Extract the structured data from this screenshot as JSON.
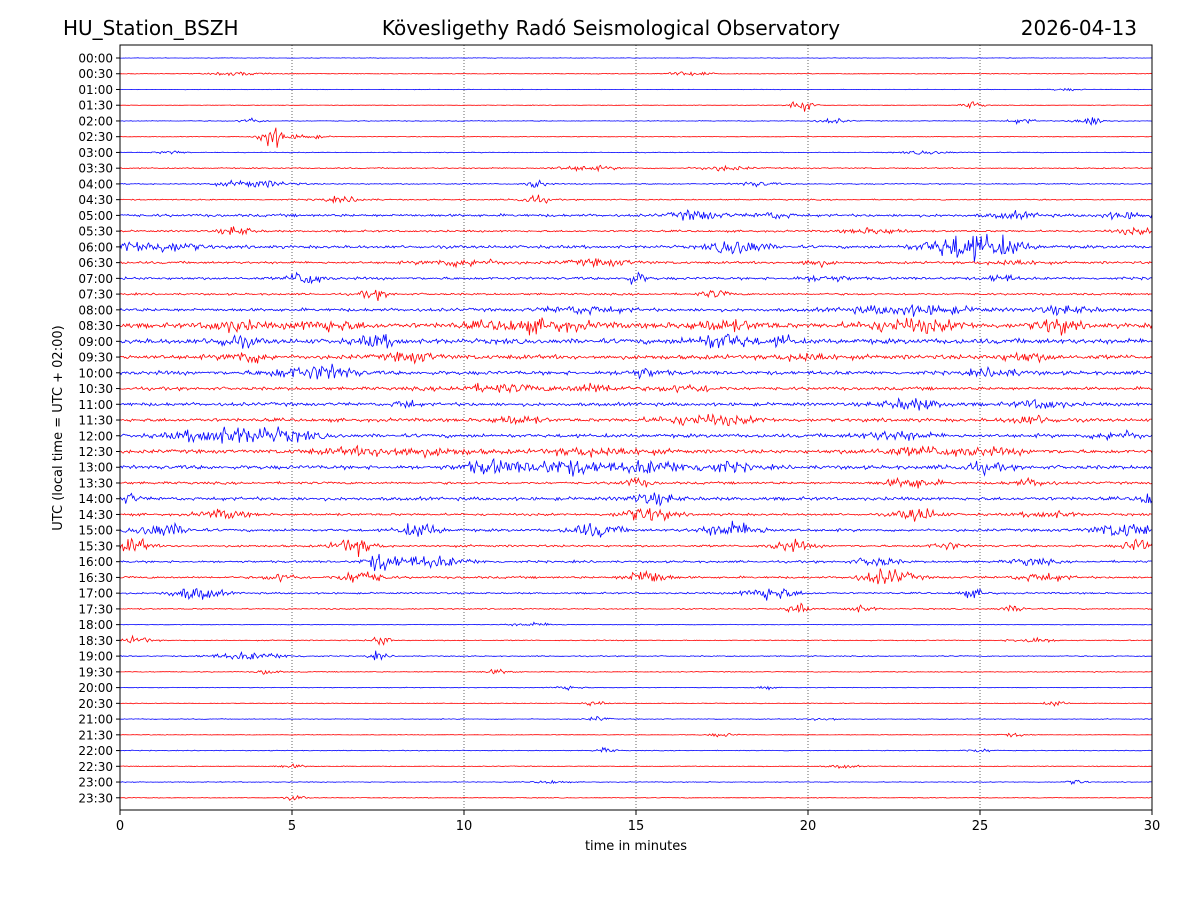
{
  "header": {
    "station": "HU_Station_BSZH",
    "observatory": "Kövesligethy Radó Seismological Observatory",
    "date": "2026-04-13"
  },
  "chart_data": {
    "type": "helicorder",
    "xlabel": "time in minutes",
    "ylabel": "UTC (local time = UTC + 02:00)",
    "xlim": [
      0,
      30
    ],
    "xticks": [
      0,
      5,
      10,
      15,
      20,
      25,
      30
    ],
    "grid": "vertical dotted at every 5 min",
    "colors": [
      "#0000ff",
      "#ff0000"
    ],
    "rows": [
      {
        "time": "00:00",
        "level": 0.4,
        "bursts": []
      },
      {
        "time": "00:30",
        "level": 0.6,
        "bursts": [
          [
            3.5,
            0.5,
            3
          ],
          [
            16.5,
            0.5,
            3
          ]
        ]
      },
      {
        "time": "01:00",
        "level": 0.4,
        "bursts": [
          [
            27.5,
            0.3,
            2
          ]
        ]
      },
      {
        "time": "01:30",
        "level": 0.45,
        "bursts": [
          [
            19.8,
            0.2,
            16
          ],
          [
            24.8,
            0.2,
            6
          ]
        ]
      },
      {
        "time": "02:00",
        "level": 0.6,
        "bursts": [
          [
            3.8,
            0.2,
            6
          ],
          [
            20.7,
            0.3,
            4
          ],
          [
            26.2,
            0.3,
            4
          ],
          [
            28.2,
            0.3,
            8
          ]
        ]
      },
      {
        "time": "02:30",
        "level": 0.5,
        "bursts": [
          [
            4.4,
            0.25,
            20
          ],
          [
            5.4,
            0.4,
            4
          ]
        ]
      },
      {
        "time": "03:00",
        "level": 0.6,
        "bursts": [
          [
            1.5,
            0.3,
            3
          ],
          [
            23.5,
            0.5,
            3
          ]
        ]
      },
      {
        "time": "03:30",
        "level": 1.0,
        "bursts": [
          [
            13.5,
            0.6,
            4
          ],
          [
            17.5,
            0.5,
            4
          ]
        ]
      },
      {
        "time": "04:00",
        "level": 0.9,
        "bursts": [
          [
            3.9,
            0.7,
            6
          ],
          [
            12.1,
            0.2,
            8
          ],
          [
            18.5,
            0.4,
            4
          ]
        ]
      },
      {
        "time": "04:30",
        "level": 1.0,
        "bursts": [
          [
            12.0,
            0.3,
            8
          ],
          [
            6.5,
            0.5,
            4
          ]
        ]
      },
      {
        "time": "05:00",
        "level": 2.2,
        "bursts": [
          [
            16.8,
            0.5,
            8
          ],
          [
            19.0,
            0.4,
            5
          ],
          [
            26.0,
            0.5,
            5
          ],
          [
            29.2,
            0.5,
            5
          ]
        ]
      },
      {
        "time": "05:30",
        "level": 1.6,
        "bursts": [
          [
            3.4,
            0.3,
            8
          ],
          [
            22.0,
            0.6,
            5
          ],
          [
            29.5,
            0.4,
            5
          ]
        ]
      },
      {
        "time": "06:00",
        "level": 2.5,
        "bursts": [
          [
            0.3,
            0.5,
            8
          ],
          [
            1.5,
            0.6,
            7
          ],
          [
            18.0,
            0.5,
            14
          ],
          [
            24.6,
            0.8,
            22
          ],
          [
            25.8,
            0.4,
            8
          ]
        ]
      },
      {
        "time": "06:30",
        "level": 2.0,
        "bursts": [
          [
            10.0,
            0.8,
            6
          ],
          [
            14.0,
            0.7,
            5
          ],
          [
            20.2,
            0.3,
            6
          ],
          [
            26.0,
            0.5,
            5
          ]
        ]
      },
      {
        "time": "07:00",
        "level": 2.2,
        "bursts": [
          [
            5.4,
            0.3,
            14
          ],
          [
            15.0,
            0.2,
            10
          ],
          [
            20.5,
            0.5,
            5
          ],
          [
            25.6,
            0.3,
            6
          ]
        ]
      },
      {
        "time": "07:30",
        "level": 1.6,
        "bursts": [
          [
            7.4,
            0.3,
            7
          ],
          [
            17.3,
            0.3,
            6
          ]
        ]
      },
      {
        "time": "08:00",
        "level": 2.6,
        "bursts": [
          [
            13.5,
            0.8,
            6
          ],
          [
            23.0,
            1.2,
            8
          ],
          [
            27.5,
            0.6,
            6
          ]
        ]
      },
      {
        "time": "08:30",
        "level": 4.0,
        "bursts": [
          [
            3.3,
            0.5,
            9
          ],
          [
            6.0,
            0.7,
            8
          ],
          [
            12.0,
            1.2,
            9
          ],
          [
            17.5,
            0.8,
            8
          ],
          [
            23.0,
            1.0,
            10
          ],
          [
            27.2,
            0.4,
            12
          ]
        ]
      },
      {
        "time": "09:00",
        "level": 4.2,
        "bursts": [
          [
            3.3,
            0.4,
            9
          ],
          [
            7.5,
            0.4,
            9
          ],
          [
            17.5,
            0.6,
            12
          ],
          [
            19.3,
            0.2,
            9
          ]
        ]
      },
      {
        "time": "09:30",
        "level": 3.6,
        "bursts": [
          [
            3.7,
            0.4,
            10
          ],
          [
            8.5,
            0.5,
            7
          ],
          [
            20.0,
            0.5,
            7
          ],
          [
            26.3,
            0.5,
            7
          ]
        ]
      },
      {
        "time": "10:00",
        "level": 3.2,
        "bursts": [
          [
            5.3,
            0.7,
            9
          ],
          [
            6.3,
            0.4,
            8
          ],
          [
            15.2,
            0.4,
            7
          ],
          [
            25.5,
            0.5,
            6
          ]
        ]
      },
      {
        "time": "10:30",
        "level": 2.6,
        "bursts": [
          [
            11.0,
            1.0,
            6
          ],
          [
            13.8,
            0.5,
            8
          ],
          [
            16.5,
            0.6,
            6
          ]
        ]
      },
      {
        "time": "11:00",
        "level": 2.8,
        "bursts": [
          [
            8.3,
            0.2,
            9
          ],
          [
            23.0,
            0.6,
            9
          ],
          [
            26.8,
            0.5,
            7
          ]
        ]
      },
      {
        "time": "11:30",
        "level": 2.8,
        "bursts": [
          [
            11.5,
            0.5,
            7
          ],
          [
            17.0,
            1.0,
            8
          ],
          [
            26.5,
            0.5,
            7
          ]
        ]
      },
      {
        "time": "12:00",
        "level": 3.0,
        "bursts": [
          [
            2.8,
            0.8,
            12
          ],
          [
            4.5,
            0.8,
            10
          ],
          [
            22.5,
            0.7,
            7
          ],
          [
            29.0,
            0.5,
            7
          ]
        ]
      },
      {
        "time": "12:30",
        "level": 3.0,
        "bursts": [
          [
            8.0,
            1.5,
            7
          ],
          [
            14.0,
            1.0,
            7
          ],
          [
            24.0,
            1.5,
            7
          ]
        ]
      },
      {
        "time": "13:00",
        "level": 3.2,
        "bursts": [
          [
            10.8,
            0.6,
            11
          ],
          [
            13.0,
            0.8,
            12
          ],
          [
            15.5,
            0.7,
            10
          ],
          [
            17.5,
            0.6,
            8
          ],
          [
            25.0,
            0.5,
            7
          ]
        ]
      },
      {
        "time": "13:30",
        "level": 2.0,
        "bursts": [
          [
            15.0,
            0.3,
            7
          ],
          [
            23.0,
            0.5,
            9
          ],
          [
            26.5,
            0.4,
            6
          ]
        ]
      },
      {
        "time": "14:00",
        "level": 2.8,
        "bursts": [
          [
            0.2,
            0.2,
            9
          ],
          [
            15.5,
            0.5,
            8
          ],
          [
            29.9,
            0.2,
            10
          ]
        ]
      },
      {
        "time": "14:30",
        "level": 2.0,
        "bursts": [
          [
            3.0,
            0.5,
            7
          ],
          [
            15.3,
            0.5,
            12
          ],
          [
            23.2,
            0.4,
            12
          ],
          [
            27.0,
            0.5,
            6
          ]
        ]
      },
      {
        "time": "15:00",
        "level": 2.2,
        "bursts": [
          [
            1.2,
            0.5,
            12
          ],
          [
            8.7,
            0.4,
            12
          ],
          [
            13.8,
            0.5,
            11
          ],
          [
            17.8,
            0.6,
            12
          ],
          [
            29.2,
            0.6,
            12
          ]
        ]
      },
      {
        "time": "15:30",
        "level": 1.8,
        "bursts": [
          [
            0.4,
            0.3,
            13
          ],
          [
            6.8,
            0.4,
            13
          ],
          [
            19.5,
            0.4,
            9
          ],
          [
            24.0,
            0.3,
            6
          ],
          [
            29.6,
            0.3,
            12
          ]
        ]
      },
      {
        "time": "16:00",
        "level": 1.8,
        "bursts": [
          [
            7.6,
            0.3,
            15
          ],
          [
            9.0,
            0.8,
            9
          ],
          [
            22.0,
            0.4,
            8
          ],
          [
            26.5,
            0.4,
            6
          ]
        ]
      },
      {
        "time": "16:30",
        "level": 1.8,
        "bursts": [
          [
            4.7,
            0.3,
            7
          ],
          [
            7.0,
            0.4,
            12
          ],
          [
            15.3,
            0.4,
            13
          ],
          [
            22.3,
            0.5,
            13
          ],
          [
            26.8,
            0.5,
            7
          ]
        ]
      },
      {
        "time": "17:00",
        "level": 1.4,
        "bursts": [
          [
            2.2,
            0.5,
            11
          ],
          [
            18.9,
            0.5,
            12
          ],
          [
            24.8,
            0.3,
            6
          ]
        ]
      },
      {
        "time": "17:30",
        "level": 1.0,
        "bursts": [
          [
            19.7,
            0.2,
            9
          ],
          [
            21.5,
            0.3,
            6
          ],
          [
            26.0,
            0.3,
            5
          ]
        ]
      },
      {
        "time": "18:00",
        "level": 0.5,
        "bursts": [
          [
            12.0,
            0.5,
            3
          ]
        ]
      },
      {
        "time": "18:30",
        "level": 0.8,
        "bursts": [
          [
            0.5,
            0.3,
            6
          ],
          [
            7.6,
            0.2,
            9
          ],
          [
            26.5,
            0.4,
            5
          ]
        ]
      },
      {
        "time": "19:00",
        "level": 0.8,
        "bursts": [
          [
            3.8,
            0.8,
            6
          ],
          [
            7.5,
            0.2,
            6
          ]
        ]
      },
      {
        "time": "19:30",
        "level": 0.7,
        "bursts": [
          [
            4.3,
            0.2,
            5
          ],
          [
            11.0,
            0.3,
            4
          ]
        ]
      },
      {
        "time": "20:00",
        "level": 0.5,
        "bursts": [
          [
            13.0,
            0.3,
            4
          ],
          [
            18.7,
            0.2,
            3
          ]
        ]
      },
      {
        "time": "20:30",
        "level": 0.6,
        "bursts": [
          [
            13.8,
            0.2,
            4
          ],
          [
            27.2,
            0.2,
            5
          ]
        ]
      },
      {
        "time": "21:00",
        "level": 0.6,
        "bursts": [
          [
            13.9,
            0.2,
            4
          ],
          [
            20.5,
            0.3,
            3
          ]
        ]
      },
      {
        "time": "21:30",
        "level": 0.5,
        "bursts": [
          [
            17.5,
            0.3,
            3
          ],
          [
            26.0,
            0.3,
            3
          ]
        ]
      },
      {
        "time": "22:00",
        "level": 0.6,
        "bursts": [
          [
            14.1,
            0.2,
            4
          ],
          [
            25.0,
            0.3,
            3
          ]
        ]
      },
      {
        "time": "22:30",
        "level": 0.6,
        "bursts": [
          [
            5.0,
            0.3,
            3
          ],
          [
            21.0,
            0.3,
            3
          ]
        ]
      },
      {
        "time": "23:00",
        "level": 0.6,
        "bursts": [
          [
            12.5,
            0.3,
            3
          ],
          [
            27.8,
            0.2,
            4
          ]
        ]
      },
      {
        "time": "23:30",
        "level": 0.6,
        "bursts": [
          [
            5.1,
            0.2,
            4
          ]
        ]
      }
    ]
  }
}
